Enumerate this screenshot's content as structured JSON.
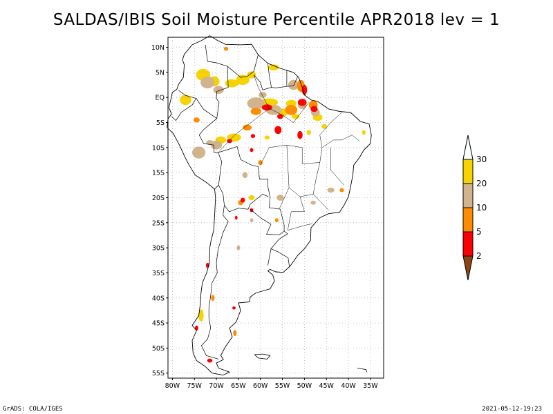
{
  "title": "SALDAS/IBIS Soil Moisture Percentile APR2018 lev = 1",
  "footer": {
    "left": "GrADS: COLA/IGES",
    "right": "2021-05-12-19:23"
  },
  "map": {
    "lon_range": [
      -81,
      -32
    ],
    "lat_range": [
      -56,
      12
    ],
    "lat_ticks": [
      {
        "value": 10,
        "label": "10N"
      },
      {
        "value": 5,
        "label": "5N"
      },
      {
        "value": 0,
        "label": "EQ"
      },
      {
        "value": -5,
        "label": "5S"
      },
      {
        "value": -10,
        "label": "10S"
      },
      {
        "value": -15,
        "label": "15S"
      },
      {
        "value": -20,
        "label": "20S"
      },
      {
        "value": -25,
        "label": "25S"
      },
      {
        "value": -30,
        "label": "30S"
      },
      {
        "value": -35,
        "label": "35S"
      },
      {
        "value": -40,
        "label": "40S"
      },
      {
        "value": -45,
        "label": "45S"
      },
      {
        "value": -50,
        "label": "50S"
      },
      {
        "value": -55,
        "label": "55S"
      }
    ],
    "lon_ticks": [
      {
        "value": -80,
        "label": "80W"
      },
      {
        "value": -75,
        "label": "75W"
      },
      {
        "value": -70,
        "label": "70W"
      },
      {
        "value": -65,
        "label": "65W"
      },
      {
        "value": -60,
        "label": "60W"
      },
      {
        "value": -55,
        "label": "55W"
      },
      {
        "value": -50,
        "label": "50W"
      },
      {
        "value": -45,
        "label": "45W"
      },
      {
        "value": -40,
        "label": "40W"
      },
      {
        "value": -35,
        "label": "35W"
      }
    ],
    "grid": "dotted"
  },
  "legend": {
    "orientation": "vertical",
    "placement": "right",
    "levels": [
      {
        "label": "30",
        "color": "#ffffff"
      },
      {
        "label": "20",
        "color": "#f7d300"
      },
      {
        "label": "10",
        "color": "#d2b48c"
      },
      {
        "label": "5",
        "color": "#ff8c00"
      },
      {
        "label": "2",
        "color": "#ff0000"
      },
      {
        "label": "",
        "color": "#8b4513"
      }
    ]
  }
}
